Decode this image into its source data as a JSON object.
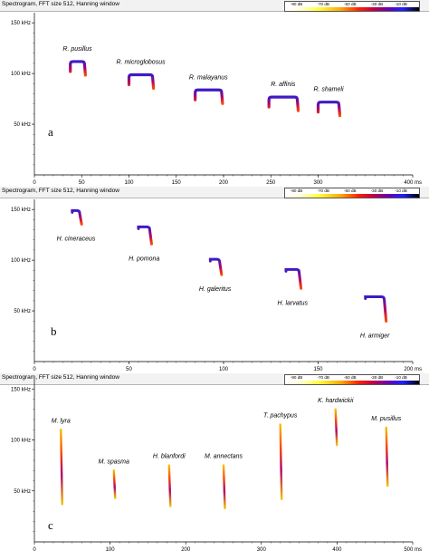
{
  "panels": [
    {
      "title": "Spectrogram, FFT size 512, Hanning window",
      "letter": "a",
      "legend_labels": [
        "-90 dB",
        "-70 dB",
        "-50 dB",
        "-30 dB",
        "-10 dB"
      ],
      "y_ticks": [
        {
          "label": "150 kHz",
          "value": 150
        },
        {
          "label": "100 kHz",
          "value": 100
        },
        {
          "label": "50 kHz",
          "value": 50
        }
      ],
      "x_ticks": [
        {
          "label": "0",
          "value": 0
        },
        {
          "label": "50",
          "value": 50
        },
        {
          "label": "100",
          "value": 100
        },
        {
          "label": "150",
          "value": 150
        },
        {
          "label": "200",
          "value": 200
        },
        {
          "label": "250",
          "value": 250
        },
        {
          "label": "300",
          "value": 300
        },
        {
          "label": "400 ms",
          "value": 400
        }
      ],
      "chart_data": {
        "type": "scatter",
        "x_range_ms": [
          0,
          400
        ],
        "y_range_khz": [
          0,
          160
        ],
        "calls": [
          {
            "species": "R. pusillus",
            "start_ms": 38,
            "end_ms": 53,
            "freq_khz": 110
          },
          {
            "species": "R. microglobosus",
            "start_ms": 100,
            "end_ms": 125,
            "freq_khz": 97
          },
          {
            "species": "R. malayanus",
            "start_ms": 170,
            "end_ms": 198,
            "freq_khz": 82
          },
          {
            "species": "R. affinis",
            "start_ms": 248,
            "end_ms": 278,
            "freq_khz": 75
          },
          {
            "species": "R. shameli",
            "start_ms": 300,
            "end_ms": 322,
            "freq_khz": 70
          }
        ]
      }
    },
    {
      "title": "Spectrogram, FFT size 512, Hanning window",
      "letter": "b",
      "legend_labels": [
        "-90 dB",
        "-70 dB",
        "-50 dB",
        "-30 dB",
        "-10 dB"
      ],
      "y_ticks": [
        {
          "label": "150 kHz",
          "value": 150
        },
        {
          "label": "100 kHz",
          "value": 100
        },
        {
          "label": "50 kHz",
          "value": 50
        }
      ],
      "x_ticks": [
        {
          "label": "0",
          "value": 0
        },
        {
          "label": "50",
          "value": 50
        },
        {
          "label": "100",
          "value": 100
        },
        {
          "label": "150",
          "value": 150
        },
        {
          "label": "200 ms",
          "value": 200
        }
      ],
      "chart_data": {
        "type": "scatter",
        "x_range_ms": [
          0,
          200
        ],
        "y_range_khz": [
          0,
          160
        ],
        "calls": [
          {
            "species": "H. cineraceus",
            "start_ms": 20,
            "end_ms": 24,
            "freq_khz": 148
          },
          {
            "species": "H. pomona",
            "start_ms": 55,
            "end_ms": 61,
            "freq_khz": 132
          },
          {
            "species": "H. galeritus",
            "start_ms": 93,
            "end_ms": 98,
            "freq_khz": 100
          },
          {
            "species": "H. larvatus",
            "start_ms": 133,
            "end_ms": 140,
            "freq_khz": 90
          },
          {
            "species": "H. armiger",
            "start_ms": 175,
            "end_ms": 185,
            "freq_khz": 63
          }
        ]
      }
    },
    {
      "title": "Spectrogram, FFT size 512, Hanning window",
      "letter": "c",
      "legend_labels": [
        "-90 dB",
        "-70 dB",
        "-50 dB",
        "-30 dB",
        "-10 dB"
      ],
      "y_ticks": [
        {
          "label": "150 kHz",
          "value": 150
        },
        {
          "label": "100 kHz",
          "value": 100
        },
        {
          "label": "50 kHz",
          "value": 50
        }
      ],
      "x_ticks": [
        {
          "label": "0",
          "value": 0
        },
        {
          "label": "100",
          "value": 100
        },
        {
          "label": "200",
          "value": 200
        },
        {
          "label": "300",
          "value": 300
        },
        {
          "label": "400",
          "value": 400
        },
        {
          "label": "500 ms",
          "value": 500
        }
      ],
      "chart_data": {
        "type": "scatter",
        "x_range_ms": [
          0,
          500
        ],
        "y_range_khz": [
          0,
          160
        ],
        "calls": [
          {
            "species": "M. lyra",
            "time_ms": 35,
            "freq_high_khz": 110,
            "freq_low_khz": 37
          },
          {
            "species": "M. spasma",
            "time_ms": 105,
            "freq_high_khz": 70,
            "freq_low_khz": 43
          },
          {
            "species": "H. blanfordi",
            "time_ms": 178,
            "freq_high_khz": 75,
            "freq_low_khz": 35
          },
          {
            "species": "M. annectans",
            "time_ms": 250,
            "freq_high_khz": 75,
            "freq_low_khz": 33
          },
          {
            "species": "T. pachypus",
            "time_ms": 325,
            "freq_high_khz": 115,
            "freq_low_khz": 42
          },
          {
            "species": "K. hardwickii",
            "time_ms": 398,
            "freq_high_khz": 130,
            "freq_low_khz": 95
          },
          {
            "species": "M. pusillus",
            "time_ms": 465,
            "freq_high_khz": 112,
            "freq_low_khz": 55
          }
        ]
      }
    }
  ],
  "colors": {
    "call_low": "#ff4a00",
    "call_mid": "#b0006a",
    "call_high": "#3a1cc8",
    "call_tip": "#f2c200"
  }
}
